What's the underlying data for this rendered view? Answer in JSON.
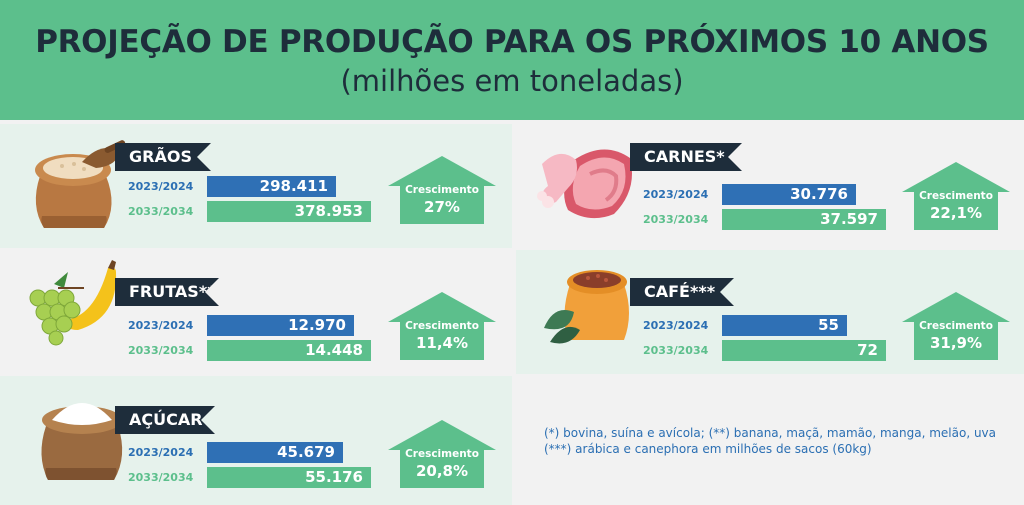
{
  "header": {
    "title": "PROJEÇÃO DE PRODUÇÃO PARA OS PRÓXIMOS 10 ANOS",
    "subtitle": "(milhões em toneladas)"
  },
  "chart_data": {
    "type": "bar",
    "title": "PROJEÇÃO DE PRODUÇÃO PARA OS PRÓXIMOS 10 ANOS",
    "subtitle": "(milhões em toneladas)",
    "series_labels": [
      "2023/2024",
      "2033/2034"
    ],
    "growth_label": "Crescimento",
    "categories": [
      {
        "name": "GRÃOS",
        "v2024": 298.411,
        "v2034": 378.953,
        "display2024": "298.411",
        "display2034": "378.953",
        "growth": "27%"
      },
      {
        "name": "CARNES*",
        "v2024": 30.776,
        "v2034": 37.597,
        "display2024": "30.776",
        "display2034": "37.597",
        "growth": "22,1%"
      },
      {
        "name": "FRUTAS**",
        "v2024": 12.97,
        "v2034": 14.448,
        "display2024": "12.970",
        "display2034": "14.448",
        "growth": "11,4%"
      },
      {
        "name": "CAFÉ***",
        "v2024": 55,
        "v2034": 72,
        "display2024": "55",
        "display2034": "72",
        "growth": "31,9%"
      },
      {
        "name": "AÇÚCAR",
        "v2024": 45.679,
        "v2034": 55.176,
        "display2024": "45.679",
        "display2034": "55.176",
        "growth": "20,8%"
      }
    ]
  },
  "notes": {
    "line1": "(*) bovina, suína e avícola; (**) banana, maçã, mamão, manga, melão, uva",
    "line2": "(***) arábica e canephora em milhões de sacos (60kg)"
  },
  "colors": {
    "header": "#5cbf8c",
    "navy": "#1e2d3b",
    "blue": "#2f70b5",
    "green": "#5cbf8c"
  },
  "icons": [
    "grain-sack-icon",
    "meat-icon",
    "fruits-icon",
    "coffee-sack-icon",
    "sugar-sack-icon"
  ]
}
